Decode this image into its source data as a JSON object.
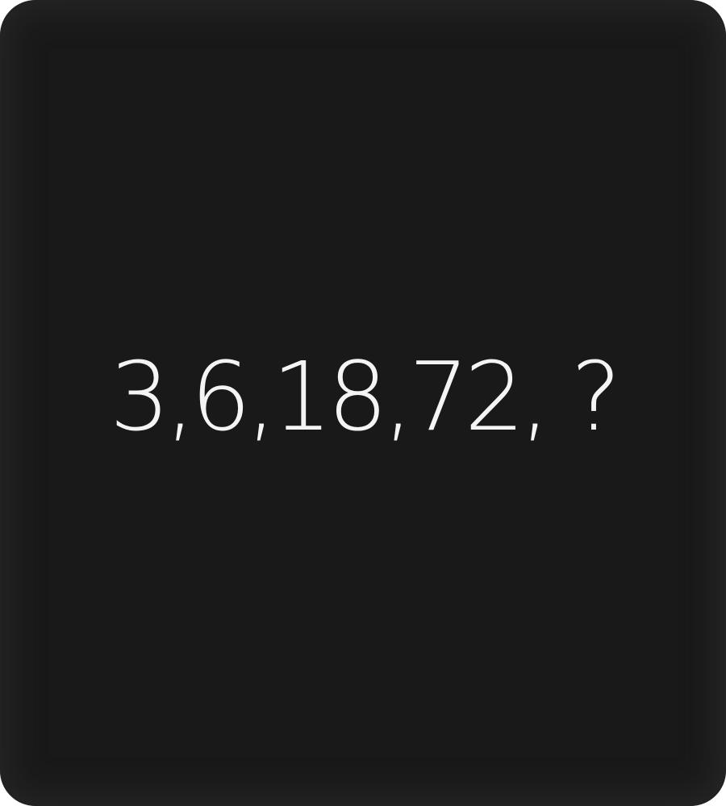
{
  "puzzle": {
    "sequence_text": "3,6,18,72, ?"
  },
  "colors": {
    "card_background": "#191919",
    "text": "#f4f4f4"
  }
}
